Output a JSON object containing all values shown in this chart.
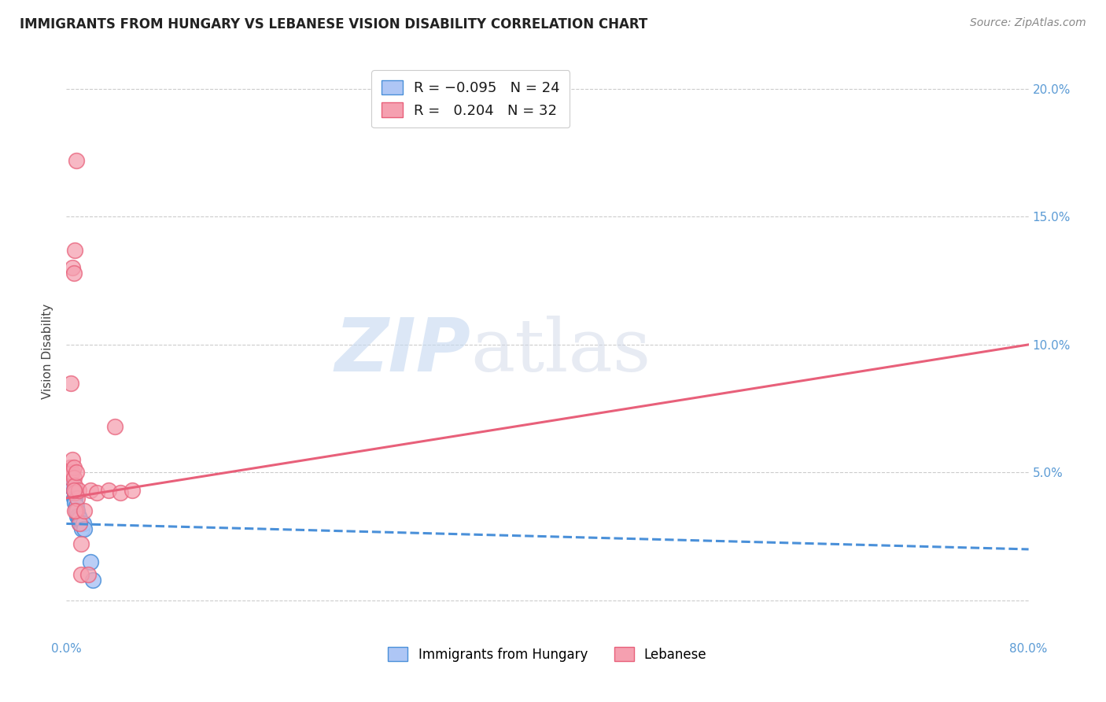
{
  "title": "IMMIGRANTS FROM HUNGARY VS LEBANESE VISION DISABILITY CORRELATION CHART",
  "source": "Source: ZipAtlas.com",
  "xlabel": "",
  "ylabel": "Vision Disability",
  "xlim": [
    0.0,
    0.8
  ],
  "ylim": [
    -0.015,
    0.21
  ],
  "xticks": [
    0.0,
    0.1,
    0.2,
    0.3,
    0.4,
    0.5,
    0.6,
    0.7,
    0.8
  ],
  "xticklabels": [
    "0.0%",
    "",
    "",
    "",
    "",
    "",
    "",
    "",
    "80.0%"
  ],
  "yticks": [
    0.0,
    0.05,
    0.1,
    0.15,
    0.2
  ],
  "yticklabels": [
    "",
    "5.0%",
    "10.0%",
    "15.0%",
    "20.0%"
  ],
  "color_hungary": "#aec6f5",
  "color_lebanese": "#f5a0b0",
  "color_hungary_line": "#4a90d9",
  "color_lebanese_line": "#e8607a",
  "color_axis": "#5b9bd5",
  "watermark_zip": "ZIP",
  "watermark_atlas": "atlas",
  "hungary_points": [
    [
      0.002,
      0.047
    ],
    [
      0.003,
      0.048
    ],
    [
      0.004,
      0.047
    ],
    [
      0.004,
      0.045
    ],
    [
      0.005,
      0.045
    ],
    [
      0.005,
      0.044
    ],
    [
      0.006,
      0.043
    ],
    [
      0.006,
      0.04
    ],
    [
      0.007,
      0.04
    ],
    [
      0.007,
      0.038
    ],
    [
      0.008,
      0.037
    ],
    [
      0.008,
      0.035
    ],
    [
      0.009,
      0.035
    ],
    [
      0.009,
      0.033
    ],
    [
      0.01,
      0.033
    ],
    [
      0.01,
      0.032
    ],
    [
      0.011,
      0.032
    ],
    [
      0.011,
      0.03
    ],
    [
      0.012,
      0.03
    ],
    [
      0.013,
      0.028
    ],
    [
      0.014,
      0.03
    ],
    [
      0.015,
      0.028
    ],
    [
      0.02,
      0.015
    ],
    [
      0.022,
      0.008
    ]
  ],
  "lebanese_points": [
    [
      0.002,
      0.05
    ],
    [
      0.003,
      0.052
    ],
    [
      0.004,
      0.048
    ],
    [
      0.004,
      0.05
    ],
    [
      0.005,
      0.05
    ],
    [
      0.005,
      0.055
    ],
    [
      0.006,
      0.052
    ],
    [
      0.006,
      0.048
    ],
    [
      0.007,
      0.045
    ],
    [
      0.007,
      0.042
    ],
    [
      0.008,
      0.05
    ],
    [
      0.008,
      0.035
    ],
    [
      0.009,
      0.04
    ],
    [
      0.01,
      0.043
    ],
    [
      0.011,
      0.03
    ],
    [
      0.012,
      0.022
    ],
    [
      0.02,
      0.043
    ],
    [
      0.025,
      0.042
    ],
    [
      0.035,
      0.043
    ],
    [
      0.045,
      0.042
    ],
    [
      0.055,
      0.043
    ],
    [
      0.004,
      0.085
    ],
    [
      0.005,
      0.13
    ],
    [
      0.006,
      0.128
    ],
    [
      0.007,
      0.137
    ],
    [
      0.008,
      0.172
    ],
    [
      0.04,
      0.068
    ],
    [
      0.006,
      0.043
    ],
    [
      0.007,
      0.035
    ],
    [
      0.012,
      0.01
    ],
    [
      0.015,
      0.035
    ],
    [
      0.018,
      0.01
    ]
  ],
  "hungary_line_x": [
    0.0,
    0.8
  ],
  "hungary_line_y": [
    0.03,
    0.02
  ],
  "lebanese_line_x": [
    0.0,
    0.8
  ],
  "lebanese_line_y": [
    0.04,
    0.1
  ]
}
